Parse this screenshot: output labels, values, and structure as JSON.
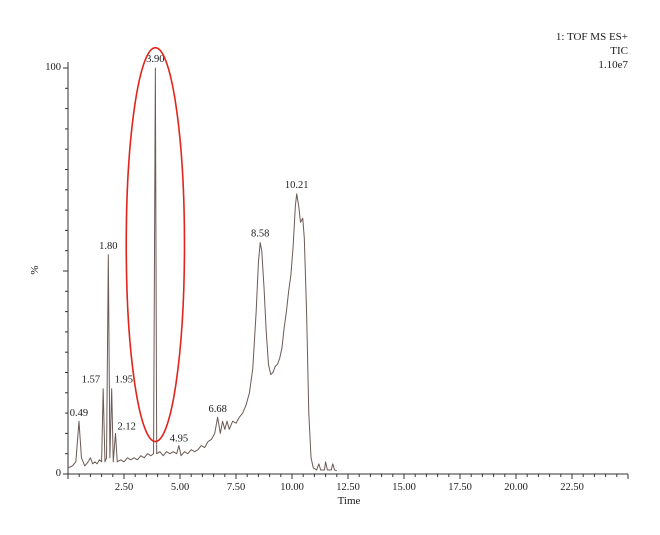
{
  "chart_data": {
    "type": "line",
    "header": [
      "1: TOF MS ES+",
      "TIC",
      "1.10e7"
    ],
    "xlabel": "Time",
    "ylabel": "%",
    "xlim": [
      0,
      25
    ],
    "ylim": [
      0,
      100
    ],
    "x_ticks": [
      "2.50",
      "5.00",
      "7.50",
      "10.00",
      "12.50",
      "15.00",
      "17.50",
      "20.00",
      "22.50"
    ],
    "y_ticks": [
      "0",
      "100"
    ],
    "grid": false,
    "line_color": "#6b5a55",
    "highlight_color": "#e3241b",
    "peaks": [
      {
        "x": 0.49,
        "y": 13,
        "label": "0.49"
      },
      {
        "x": 1.57,
        "y": 21,
        "label": "1.57"
      },
      {
        "x": 1.8,
        "y": 54,
        "label": "1.80"
      },
      {
        "x": 1.95,
        "y": 21,
        "label": "1.95"
      },
      {
        "x": 2.12,
        "y": 10,
        "label": "2.12"
      },
      {
        "x": 3.9,
        "y": 100,
        "label": "3.90"
      },
      {
        "x": 4.95,
        "y": 7,
        "label": "4.95"
      },
      {
        "x": 6.68,
        "y": 14,
        "label": "6.68"
      },
      {
        "x": 8.58,
        "y": 57,
        "label": "8.58"
      },
      {
        "x": 10.21,
        "y": 69,
        "label": "10.21"
      }
    ],
    "highlight": {
      "shape": "ellipse",
      "x_range": [
        2.6,
        5.2
      ],
      "y_range": [
        8,
        105
      ],
      "around_peak": "3.90"
    },
    "trace": [
      [
        0.0,
        1.5
      ],
      [
        0.2,
        2
      ],
      [
        0.35,
        3
      ],
      [
        0.49,
        13
      ],
      [
        0.6,
        4
      ],
      [
        0.75,
        2
      ],
      [
        0.9,
        3
      ],
      [
        1.0,
        4
      ],
      [
        1.1,
        2.5
      ],
      [
        1.2,
        3
      ],
      [
        1.3,
        2.5
      ],
      [
        1.4,
        3.5
      ],
      [
        1.5,
        3
      ],
      [
        1.57,
        21
      ],
      [
        1.65,
        3
      ],
      [
        1.72,
        4
      ],
      [
        1.8,
        54
      ],
      [
        1.87,
        4
      ],
      [
        1.95,
        21
      ],
      [
        2.02,
        3
      ],
      [
        2.12,
        10
      ],
      [
        2.2,
        3
      ],
      [
        2.35,
        3.5
      ],
      [
        2.5,
        3
      ],
      [
        2.65,
        4
      ],
      [
        2.8,
        3.5
      ],
      [
        2.95,
        4
      ],
      [
        3.1,
        3.5
      ],
      [
        3.25,
        4.5
      ],
      [
        3.4,
        4
      ],
      [
        3.55,
        5
      ],
      [
        3.7,
        4.5
      ],
      [
        3.82,
        5
      ],
      [
        3.9,
        100
      ],
      [
        3.96,
        5
      ],
      [
        4.1,
        5.5
      ],
      [
        4.25,
        4.5
      ],
      [
        4.4,
        5.5
      ],
      [
        4.55,
        5
      ],
      [
        4.7,
        5.5
      ],
      [
        4.85,
        5
      ],
      [
        4.95,
        7
      ],
      [
        5.05,
        4.5
      ],
      [
        5.2,
        5.5
      ],
      [
        5.35,
        5
      ],
      [
        5.5,
        6
      ],
      [
        5.65,
        5.5
      ],
      [
        5.8,
        6
      ],
      [
        5.95,
        7
      ],
      [
        6.1,
        6.5
      ],
      [
        6.25,
        8
      ],
      [
        6.4,
        8.5
      ],
      [
        6.55,
        10
      ],
      [
        6.68,
        14
      ],
      [
        6.8,
        10
      ],
      [
        6.9,
        13
      ],
      [
        7.0,
        11
      ],
      [
        7.1,
        13
      ],
      [
        7.2,
        11
      ],
      [
        7.35,
        13
      ],
      [
        7.5,
        12.5
      ],
      [
        7.65,
        14
      ],
      [
        7.8,
        15
      ],
      [
        7.95,
        17
      ],
      [
        8.1,
        20
      ],
      [
        8.25,
        26
      ],
      [
        8.4,
        40
      ],
      [
        8.5,
        52
      ],
      [
        8.58,
        57
      ],
      [
        8.65,
        55
      ],
      [
        8.75,
        46
      ],
      [
        8.85,
        35
      ],
      [
        8.95,
        27
      ],
      [
        9.05,
        24.5
      ],
      [
        9.15,
        25
      ],
      [
        9.25,
        26.5
      ],
      [
        9.35,
        27
      ],
      [
        9.45,
        28.5
      ],
      [
        9.55,
        31
      ],
      [
        9.65,
        36
      ],
      [
        9.75,
        40
      ],
      [
        9.85,
        45
      ],
      [
        9.95,
        49
      ],
      [
        10.05,
        56
      ],
      [
        10.15,
        66
      ],
      [
        10.21,
        69
      ],
      [
        10.3,
        66
      ],
      [
        10.38,
        62
      ],
      [
        10.48,
        63
      ],
      [
        10.55,
        58
      ],
      [
        10.65,
        40
      ],
      [
        10.75,
        15
      ],
      [
        10.85,
        4
      ],
      [
        10.95,
        1.5
      ],
      [
        11.1,
        1
      ],
      [
        11.2,
        2.5
      ],
      [
        11.28,
        1
      ],
      [
        11.45,
        1
      ],
      [
        11.5,
        3
      ],
      [
        11.58,
        1
      ],
      [
        11.75,
        1
      ],
      [
        11.82,
        2.5
      ],
      [
        11.9,
        1
      ],
      [
        12.0,
        0.8
      ]
    ]
  }
}
